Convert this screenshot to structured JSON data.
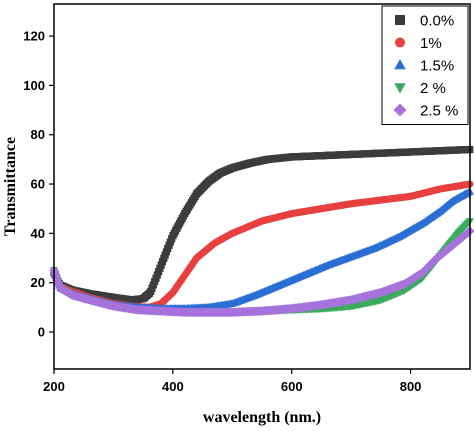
{
  "chart_data": {
    "type": "scatter",
    "xlabel": "wavelength (nm.)",
    "ylabel": "Transmittance",
    "xlim": [
      200,
      900
    ],
    "ylim": [
      -15,
      133
    ],
    "x_ticks": [
      200,
      400,
      600,
      800
    ],
    "y_ticks": [
      0,
      20,
      40,
      60,
      80,
      100,
      120
    ],
    "legend_position": "top-right",
    "grid": false,
    "series": [
      {
        "name": "0.0%",
        "marker": "square",
        "color": "#3c3c3c",
        "points": [
          [
            200,
            24
          ],
          [
            210,
            19
          ],
          [
            230,
            17
          ],
          [
            260,
            15.5
          ],
          [
            300,
            14
          ],
          [
            330,
            13
          ],
          [
            350,
            13.5
          ],
          [
            362,
            16
          ],
          [
            372,
            22
          ],
          [
            385,
            30
          ],
          [
            400,
            39
          ],
          [
            420,
            48
          ],
          [
            440,
            56
          ],
          [
            460,
            61
          ],
          [
            480,
            64.5
          ],
          [
            500,
            66.5
          ],
          [
            530,
            68.5
          ],
          [
            560,
            70
          ],
          [
            600,
            71
          ],
          [
            650,
            71.5
          ],
          [
            700,
            72
          ],
          [
            750,
            72.5
          ],
          [
            800,
            73
          ],
          [
            850,
            73.5
          ],
          [
            900,
            74
          ]
        ]
      },
      {
        "name": "1%",
        "marker": "circle",
        "color": "#e8403f",
        "points": [
          [
            200,
            24
          ],
          [
            210,
            18.5
          ],
          [
            230,
            16.5
          ],
          [
            260,
            14
          ],
          [
            300,
            11.5
          ],
          [
            330,
            10.5
          ],
          [
            360,
            10
          ],
          [
            380,
            11.5
          ],
          [
            400,
            16
          ],
          [
            420,
            23
          ],
          [
            440,
            30
          ],
          [
            470,
            36
          ],
          [
            500,
            40
          ],
          [
            550,
            45
          ],
          [
            600,
            48
          ],
          [
            650,
            50
          ],
          [
            700,
            52
          ],
          [
            750,
            53.5
          ],
          [
            800,
            55
          ],
          [
            850,
            58
          ],
          [
            900,
            60
          ]
        ]
      },
      {
        "name": "1.5%",
        "marker": "triangle-up",
        "color": "#2a6fd4",
        "points": [
          [
            200,
            25
          ],
          [
            210,
            18
          ],
          [
            230,
            15.5
          ],
          [
            260,
            13.5
          ],
          [
            300,
            11
          ],
          [
            340,
            10
          ],
          [
            380,
            9.5
          ],
          [
            420,
            9.5
          ],
          [
            460,
            10
          ],
          [
            500,
            11.5
          ],
          [
            540,
            15
          ],
          [
            580,
            19
          ],
          [
            620,
            23
          ],
          [
            660,
            27
          ],
          [
            700,
            30.5
          ],
          [
            740,
            34
          ],
          [
            780,
            38.5
          ],
          [
            820,
            44
          ],
          [
            850,
            49
          ],
          [
            870,
            53
          ],
          [
            900,
            57
          ]
        ]
      },
      {
        "name": "2 %",
        "marker": "triangle-down",
        "color": "#3aaa5c",
        "points": [
          [
            200,
            25
          ],
          [
            210,
            18
          ],
          [
            230,
            15
          ],
          [
            260,
            13
          ],
          [
            300,
            10.5
          ],
          [
            340,
            9
          ],
          [
            380,
            8.5
          ],
          [
            420,
            8
          ],
          [
            460,
            8
          ],
          [
            500,
            8
          ],
          [
            550,
            8.5
          ],
          [
            600,
            9
          ],
          [
            650,
            9.5
          ],
          [
            700,
            10.5
          ],
          [
            750,
            13
          ],
          [
            790,
            17
          ],
          [
            820,
            22
          ],
          [
            840,
            28
          ],
          [
            860,
            34
          ],
          [
            880,
            40
          ],
          [
            900,
            45
          ]
        ]
      },
      {
        "name": "2.5 %",
        "marker": "diamond",
        "color": "#a673dc",
        "points": [
          [
            200,
            25
          ],
          [
            210,
            18
          ],
          [
            230,
            15
          ],
          [
            260,
            13
          ],
          [
            300,
            10.5
          ],
          [
            340,
            9
          ],
          [
            380,
            8.5
          ],
          [
            420,
            8
          ],
          [
            460,
            8
          ],
          [
            500,
            8
          ],
          [
            550,
            8.5
          ],
          [
            600,
            9.5
          ],
          [
            650,
            11
          ],
          [
            700,
            13
          ],
          [
            750,
            16
          ],
          [
            790,
            19.5
          ],
          [
            820,
            24
          ],
          [
            840,
            29
          ],
          [
            860,
            33
          ],
          [
            880,
            37
          ],
          [
            900,
            41
          ]
        ]
      }
    ]
  }
}
